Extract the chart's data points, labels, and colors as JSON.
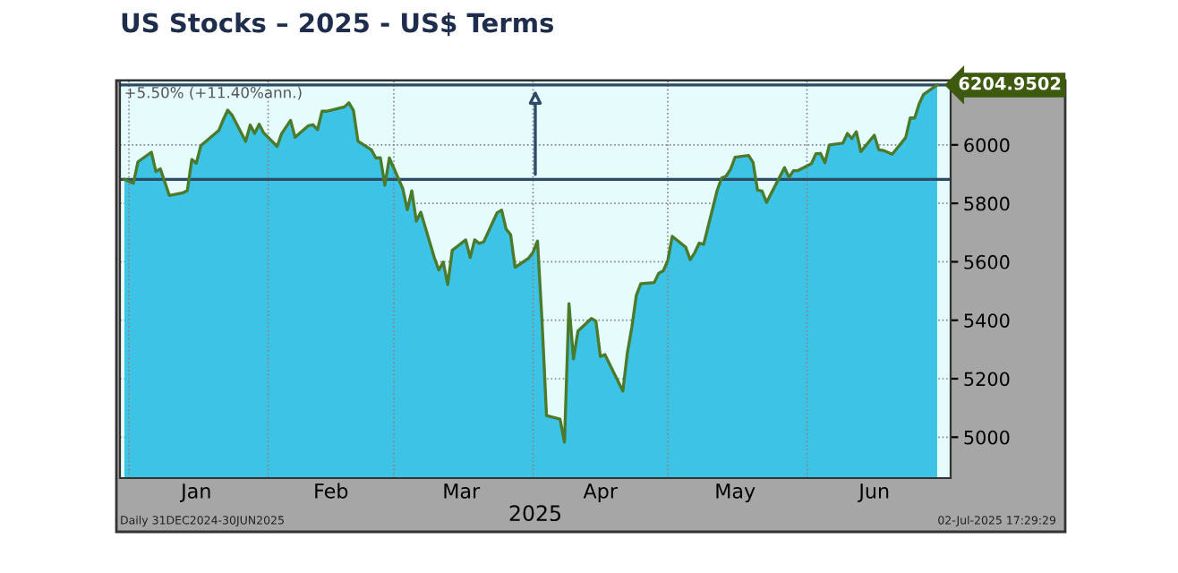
{
  "chart_data": {
    "type": "area",
    "title": "US Stocks – 2025 - US$ Terms",
    "xlabel": "2025",
    "x": [
      "2024-12-31",
      "2025-01-02",
      "2025-01-03",
      "2025-01-06",
      "2025-01-07",
      "2025-01-08",
      "2025-01-10",
      "2025-01-13",
      "2025-01-14",
      "2025-01-15",
      "2025-01-16",
      "2025-01-17",
      "2025-01-21",
      "2025-01-22",
      "2025-01-23",
      "2025-01-24",
      "2025-01-27",
      "2025-01-28",
      "2025-01-29",
      "2025-01-30",
      "2025-01-31",
      "2025-02-03",
      "2025-02-04",
      "2025-02-05",
      "2025-02-06",
      "2025-02-07",
      "2025-02-10",
      "2025-02-11",
      "2025-02-12",
      "2025-02-13",
      "2025-02-14",
      "2025-02-18",
      "2025-02-19",
      "2025-02-20",
      "2025-02-21",
      "2025-02-24",
      "2025-02-25",
      "2025-02-26",
      "2025-02-27",
      "2025-02-28",
      "2025-03-03",
      "2025-03-04",
      "2025-03-05",
      "2025-03-06",
      "2025-03-07",
      "2025-03-10",
      "2025-03-11",
      "2025-03-12",
      "2025-03-13",
      "2025-03-14",
      "2025-03-17",
      "2025-03-18",
      "2025-03-19",
      "2025-03-20",
      "2025-03-21",
      "2025-03-24",
      "2025-03-25",
      "2025-03-26",
      "2025-03-27",
      "2025-03-28",
      "2025-03-31",
      "2025-04-01",
      "2025-04-02",
      "2025-04-03",
      "2025-04-04",
      "2025-04-07",
      "2025-04-08",
      "2025-04-09",
      "2025-04-10",
      "2025-04-11",
      "2025-04-14",
      "2025-04-15",
      "2025-04-16",
      "2025-04-17",
      "2025-04-21",
      "2025-04-22",
      "2025-04-23",
      "2025-04-24",
      "2025-04-25",
      "2025-04-28",
      "2025-04-29",
      "2025-04-30",
      "2025-05-01",
      "2025-05-02",
      "2025-05-05",
      "2025-05-06",
      "2025-05-07",
      "2025-05-08",
      "2025-05-09",
      "2025-05-12",
      "2025-05-13",
      "2025-05-14",
      "2025-05-15",
      "2025-05-16",
      "2025-05-19",
      "2025-05-20",
      "2025-05-21",
      "2025-05-22",
      "2025-05-23",
      "2025-05-27",
      "2025-05-28",
      "2025-05-29",
      "2025-05-30",
      "2025-06-02",
      "2025-06-03",
      "2025-06-04",
      "2025-06-05",
      "2025-06-06",
      "2025-06-09",
      "2025-06-10",
      "2025-06-11",
      "2025-06-12",
      "2025-06-13",
      "2025-06-16",
      "2025-06-17",
      "2025-06-18",
      "2025-06-20",
      "2025-06-23",
      "2025-06-24",
      "2025-06-25",
      "2025-06-26",
      "2025-06-27",
      "2025-06-30"
    ],
    "series": [
      {
        "color": "#3cc3e6",
        "values": [
          5882,
          5869,
          5942,
          5975,
          5909,
          5918,
          5827,
          5836,
          5843,
          5950,
          5937,
          5997,
          6049,
          6086,
          6119,
          6101,
          6012,
          6068,
          6039,
          6071,
          6041,
          5995,
          6038,
          6061,
          6084,
          6026,
          6066,
          6069,
          6052,
          6115,
          6115,
          6130,
          6144,
          6118,
          6013,
          5983,
          5955,
          5956,
          5862,
          5955,
          5850,
          5778,
          5843,
          5739,
          5770,
          5615,
          5572,
          5599,
          5522,
          5639,
          5675,
          5615,
          5675,
          5663,
          5668,
          5768,
          5777,
          5712,
          5693,
          5581,
          5612,
          5633,
          5671,
          5397,
          5074,
          5062,
          4983,
          5457,
          5268,
          5363,
          5406,
          5397,
          5276,
          5283,
          5158,
          5288,
          5376,
          5485,
          5525,
          5529,
          5561,
          5569,
          5604,
          5687,
          5650,
          5607,
          5631,
          5664,
          5660,
          5844,
          5887,
          5893,
          5917,
          5958,
          5964,
          5940,
          5845,
          5842,
          5803,
          5922,
          5889,
          5912,
          5912,
          5936,
          5970,
          5971,
          5939,
          6000,
          6006,
          6039,
          6022,
          6045,
          5977,
          6033,
          5983,
          5981,
          5968,
          6025,
          6092,
          6092,
          6141,
          6173,
          6205
        ]
      },
      {
        "type": "line",
        "color": "#4a7a2a",
        "values": [
          5882,
          5869,
          5942,
          5975,
          5909,
          5918,
          5827,
          5836,
          5843,
          5950,
          5937,
          5997,
          6049,
          6086,
          6119,
          6101,
          6012,
          6068,
          6039,
          6071,
          6041,
          5995,
          6038,
          6061,
          6084,
          6026,
          6066,
          6069,
          6052,
          6115,
          6115,
          6130,
          6144,
          6118,
          6013,
          5983,
          5955,
          5956,
          5862,
          5955,
          5850,
          5778,
          5843,
          5739,
          5770,
          5615,
          5572,
          5599,
          5522,
          5639,
          5675,
          5615,
          5675,
          5663,
          5668,
          5768,
          5777,
          5712,
          5693,
          5581,
          5612,
          5633,
          5671,
          5397,
          5074,
          5062,
          4983,
          5457,
          5268,
          5363,
          5406,
          5397,
          5276,
          5283,
          5158,
          5288,
          5376,
          5485,
          5525,
          5529,
          5561,
          5569,
          5604,
          5687,
          5650,
          5607,
          5631,
          5664,
          5660,
          5844,
          5887,
          5893,
          5917,
          5958,
          5964,
          5940,
          5845,
          5842,
          5803,
          5922,
          5889,
          5912,
          5912,
          5936,
          5970,
          5971,
          5939,
          6000,
          6006,
          6039,
          6022,
          6045,
          5977,
          6033,
          5983,
          5981,
          5968,
          6025,
          6092,
          6092,
          6141,
          6173,
          6205
        ]
      }
    ],
    "xlim": [
      "2024-12-30",
      "2025-07-03"
    ],
    "xticks": [
      {
        "value": "2025-01-01",
        "label": null
      },
      {
        "value": "2025-01-16",
        "label": "Jan"
      },
      {
        "value": "2025-02-01",
        "label": null
      },
      {
        "value": "2025-02-15",
        "label": "Feb"
      },
      {
        "value": "2025-03-01",
        "label": null
      },
      {
        "value": "2025-03-16",
        "label": "Mar"
      },
      {
        "value": "2025-04-01",
        "label": null
      },
      {
        "value": "2025-04-16",
        "label": "Apr"
      },
      {
        "value": "2025-05-01",
        "label": null
      },
      {
        "value": "2025-05-16",
        "label": "May"
      },
      {
        "value": "2025-06-01",
        "label": null
      },
      {
        "value": "2025-06-16",
        "label": "Jun"
      }
    ],
    "ylim": [
      4860,
      6220
    ],
    "yticks": [
      5000,
      5200,
      5400,
      5600,
      5800,
      6000
    ],
    "grid": true,
    "ref_lines": [
      {
        "axis": "y",
        "value": 5882,
        "color": "#2e4a66"
      },
      {
        "axis": "y",
        "value": 6204.9502,
        "label": "6204.9502",
        "color": "#2e4a66"
      }
    ],
    "annotations": [
      "+5.50% (+11.40%ann.)",
      "Daily 31DEC2024-30JUN2025",
      "02-Jul-2025 17:29:29"
    ]
  }
}
